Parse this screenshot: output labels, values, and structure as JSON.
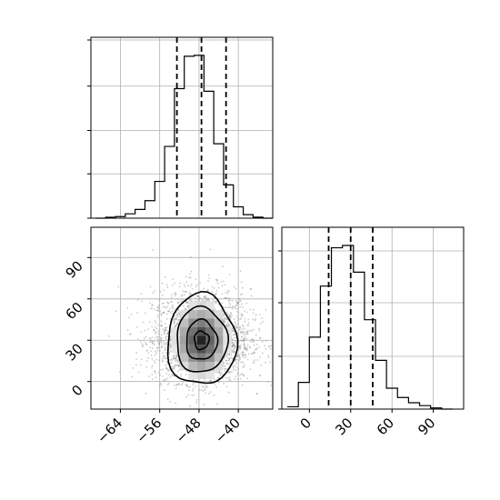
{
  "chart_data": {
    "type": "corner",
    "panels": {
      "hist_x": {
        "type": "histogram",
        "bins": [
          -69,
          -67,
          -65,
          -63,
          -61,
          -59,
          -57,
          -55,
          -53,
          -51,
          -49,
          -47,
          -45,
          -43,
          -41,
          -39,
          -37,
          -35,
          -33
        ],
        "counts": [
          0,
          10,
          18,
          50,
          100,
          200,
          420,
          820,
          1480,
          1850,
          1860,
          1450,
          850,
          380,
          130,
          40,
          12,
          0
        ],
        "quantile_lines": [
          -52.5,
          -47.5,
          -42.5
        ],
        "xlim": [
          -70,
          -33
        ]
      },
      "hist_y": {
        "type": "histogram",
        "bins": [
          -16,
          -8,
          0,
          8,
          16,
          24,
          32,
          40,
          48,
          56,
          64,
          72,
          80,
          88,
          96,
          104
        ],
        "counts": [
          20,
          230,
          620,
          1060,
          1390,
          1410,
          1180,
          770,
          420,
          180,
          100,
          55,
          30,
          10,
          0
        ],
        "quantile_lines": [
          14,
          30,
          46
        ],
        "xlim": [
          -20,
          112
        ],
        "x_ticks": [
          "0",
          "30",
          "60",
          "90"
        ]
      },
      "scatter_2d": {
        "type": "scatter+contour",
        "x_center": -47.5,
        "y_center": 30,
        "x_std": 5,
        "y_std": 16,
        "xlim": [
          -70,
          -33
        ],
        "ylim": [
          -20,
          112
        ],
        "x_ticks": [
          "−64",
          "−56",
          "−48",
          "−40"
        ],
        "y_ticks": [
          "0",
          "30",
          "60",
          "90"
        ]
      }
    }
  }
}
